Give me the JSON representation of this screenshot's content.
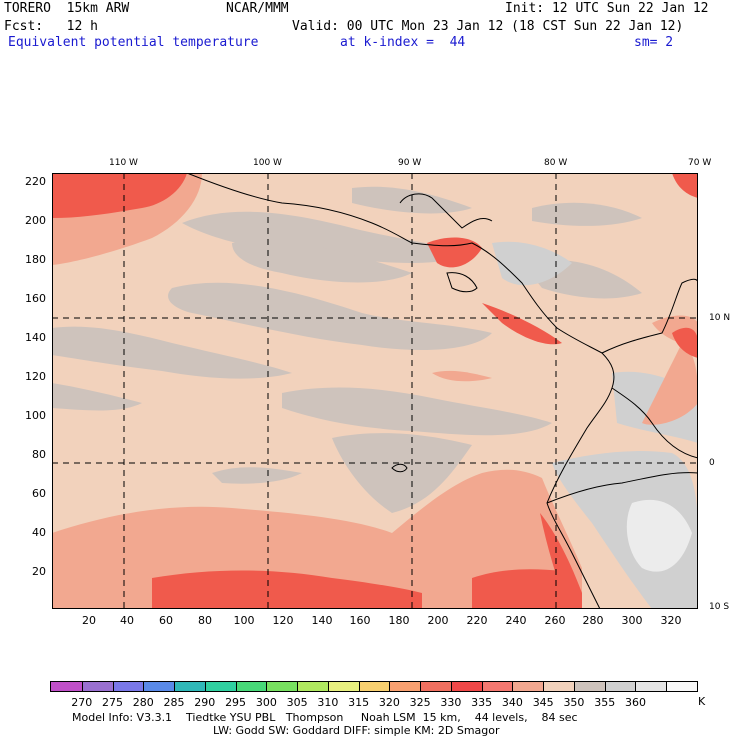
{
  "header": {
    "model": "TORERO  15km ARW",
    "org": "NCAR/MMM",
    "init": "Init: 12 UTC Sun 22 Jan 12",
    "fcst": "Fcst:   12 h",
    "valid": "Valid: 00 UTC Mon 23 Jan 12 (18 CST Sun 22 Jan 12)",
    "field": "Equivalent potential temperature",
    "level": "at k-index =  44",
    "smooth": "sm= 2"
  },
  "map": {
    "lon_labels": [
      "110 W",
      "100 W",
      "90 W",
      "80 W",
      "70 W"
    ],
    "lat_labels": [
      "10 N",
      "0",
      "10 S"
    ],
    "y_ticks": [
      "220",
      "200",
      "180",
      "160",
      "140",
      "120",
      "100",
      "80",
      "60",
      "40",
      "20"
    ],
    "x_ticks": [
      "20",
      "40",
      "60",
      "80",
      "100",
      "120",
      "140",
      "160",
      "180",
      "200",
      "220",
      "240",
      "260",
      "280",
      "300",
      "320"
    ]
  },
  "colorbar": {
    "labels": [
      "270",
      "275",
      "280",
      "285",
      "290",
      "295",
      "300",
      "305",
      "310",
      "315",
      "320",
      "325",
      "330",
      "335",
      "340",
      "345",
      "350",
      "355",
      "360"
    ],
    "unit": "K",
    "colors": [
      "#c050c8",
      "#9a70d0",
      "#7a78e8",
      "#5a8ae8",
      "#30b8b8",
      "#30d0a0",
      "#48d878",
      "#78e060",
      "#b0e860",
      "#e8f080",
      "#f8d070",
      "#f8a070",
      "#f07060",
      "#f04848",
      "#f47870",
      "#f2a890",
      "#f2d2bc",
      "#cec3bc",
      "#d0d0d0",
      "#e4e4e4",
      "#f8f8f8"
    ]
  },
  "footer": {
    "line1": "Model Info: V3.3.1    Tiedtke YSU PBL   Thompson     Noah LSM  15 km,    44 levels,    84 sec",
    "line2": "LW: Godd SW: Goddard DIFF: simple KM: 2D Smagor"
  }
}
